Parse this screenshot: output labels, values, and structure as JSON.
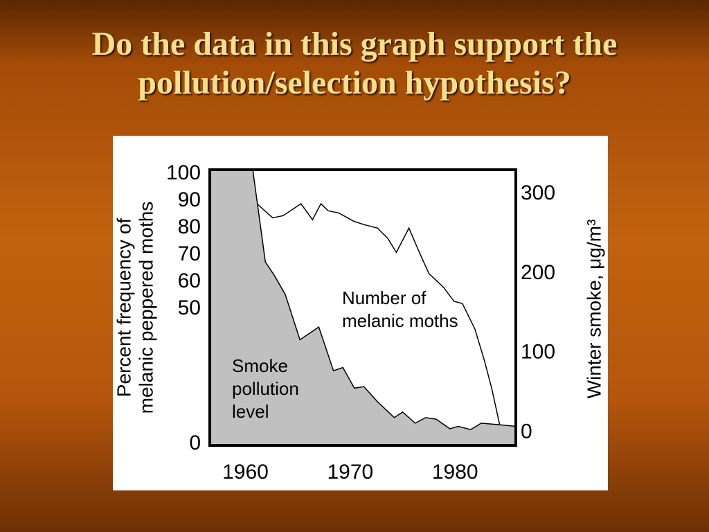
{
  "slide": {
    "title": [
      "Do the data in this graph support the",
      "pollution/selection hypothesis?"
    ]
  },
  "chart_data": {
    "type": "line",
    "y_label": [
      "Percent frequency of",
      "melanic peppered moths"
    ],
    "y2_label": "Winter smoke, μg/m³",
    "annotations": [
      [
        "Number of",
        "melanic moths"
      ],
      [
        "Smoke",
        "pollution",
        "level"
      ]
    ],
    "xlim": [
      1956.6,
      1985.8
    ],
    "xticks": [
      1960,
      1970,
      1980
    ],
    "ylim": [
      -1,
      101
    ],
    "yticks": [
      0,
      50,
      60,
      70,
      80,
      90,
      100
    ],
    "y2lim": [
      -18,
      329
    ],
    "y2ticks": [
      0,
      100,
      200,
      300
    ],
    "series": [
      {
        "name": "Number of melanic moths",
        "color": "#000000",
        "fill": "none",
        "x": [
          1960.7,
          1961.1,
          1962.6,
          1963.6,
          1965.3,
          1966.4,
          1967.2,
          1967.9,
          1968.9,
          1970.3,
          1971.3,
          1972.6,
          1973.6,
          1974.4,
          1975.6,
          1976.6,
          1977.5,
          1978.9,
          1979.9,
          1980.7,
          1981.9,
          1982.8,
          1983.5,
          1984.3
        ],
        "values": [
          101,
          88.4,
          83.2,
          84,
          88.4,
          82.5,
          88.4,
          85.8,
          85,
          82,
          80.7,
          79.4,
          75.5,
          70.4,
          79.4,
          70.4,
          62.6,
          57.5,
          52.3,
          51.5,
          42,
          30.4,
          20.1,
          5.9
        ]
      },
      {
        "name": "Smoke pollution level",
        "color": "#000000",
        "fill": "#c0c0c0",
        "axis": "y2",
        "x": [
          1956.6,
          1960.7,
          1961.9,
          1962.8,
          1963.8,
          1965.2,
          1967,
          1968.4,
          1969.3,
          1970.4,
          1971.3,
          1972.6,
          1974.2,
          1975,
          1976.2,
          1977.2,
          1978.2,
          1979.5,
          1980.3,
          1981.5,
          1982.5,
          1984.2,
          1985.8
        ],
        "values": [
          329,
          329,
          213,
          195,
          172,
          115,
          131,
          76,
          80,
          54,
          56,
          37,
          17,
          24,
          10,
          17,
          15,
          3,
          6,
          2,
          10,
          8,
          6
        ]
      }
    ]
  }
}
